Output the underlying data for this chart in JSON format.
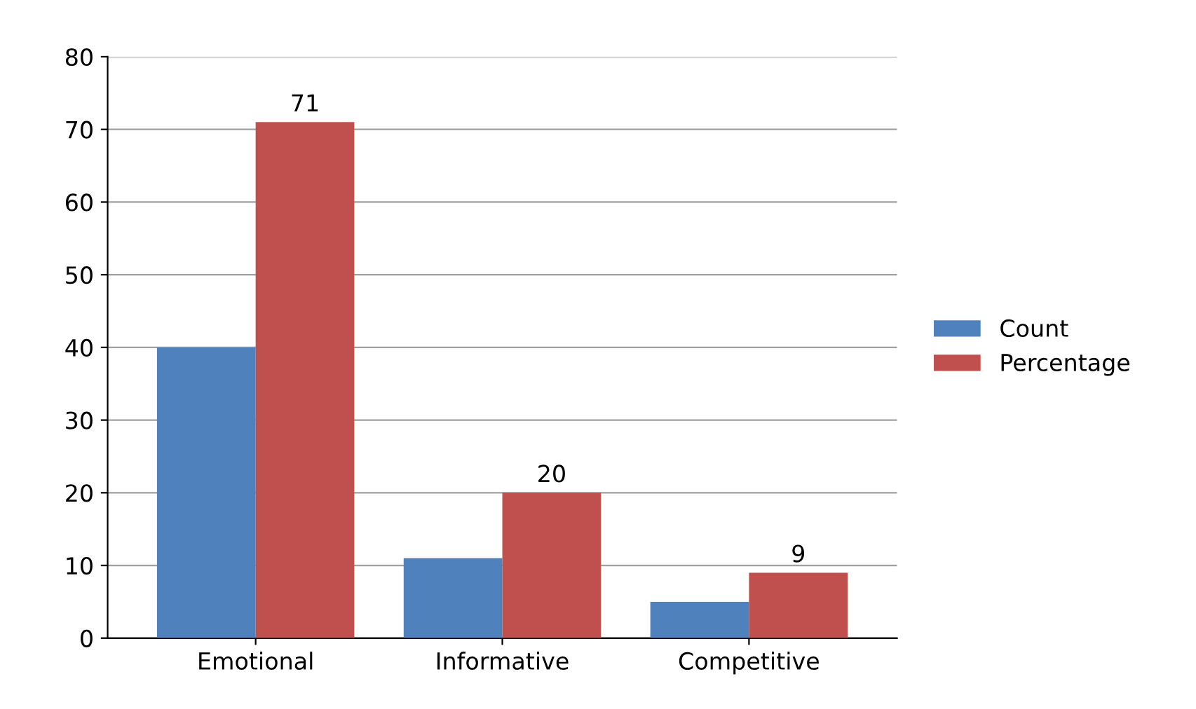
{
  "chart_data": {
    "type": "bar",
    "categories": [
      "Emotional",
      "Informative",
      "Competitive"
    ],
    "series": [
      {
        "name": "Count",
        "color": "#4f81bd",
        "values": [
          40,
          11,
          5
        ]
      },
      {
        "name": "Percentage",
        "color": "#c0504d",
        "values": [
          71,
          20,
          9
        ],
        "value_labels": [
          "71",
          "20",
          "9"
        ]
      }
    ],
    "ylim": [
      0,
      80
    ],
    "yticks": [
      0,
      10,
      20,
      30,
      40,
      50,
      60,
      70,
      80
    ],
    "grid": "y",
    "legend": "right"
  }
}
